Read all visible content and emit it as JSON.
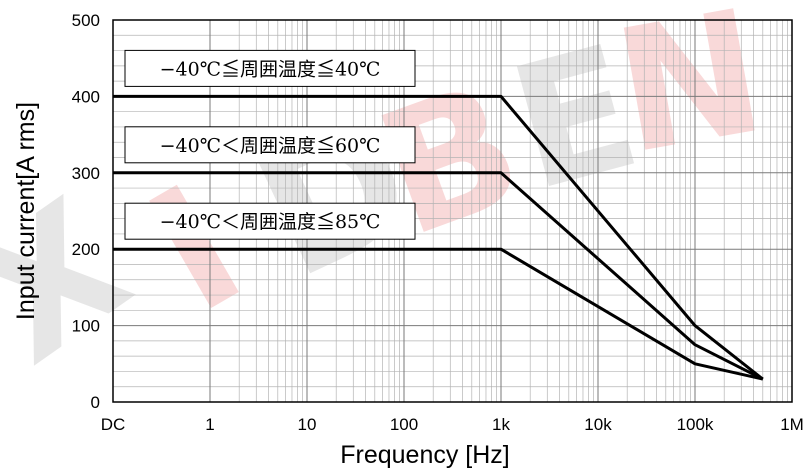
{
  "chart_data": {
    "type": "line",
    "xlabel": "Frequency [Hz]",
    "ylabel": "Input current[A rms]",
    "x_scale": "log",
    "x_ticks": [
      "DC",
      "1",
      "10",
      "100",
      "1k",
      "10k",
      "100k",
      "1M"
    ],
    "y_ticks": [
      "0",
      "100",
      "200",
      "300",
      "400",
      "500"
    ],
    "ylim": [
      0,
      500
    ],
    "grid": true,
    "series": [
      {
        "name": "−40℃≦周囲温度≦40℃",
        "x": [
          "DC",
          1000,
          100000,
          500000
        ],
        "y": [
          400,
          400,
          100,
          30
        ]
      },
      {
        "name": "−40℃＜周囲温度≦60℃",
        "x": [
          "DC",
          1000,
          100000,
          500000
        ],
        "y": [
          300,
          300,
          75,
          30
        ]
      },
      {
        "name": "−40℃＜周囲温度≦85℃",
        "x": [
          "DC",
          1000,
          100000,
          500000
        ],
        "y": [
          200,
          200,
          50,
          30
        ]
      }
    ],
    "watermark": "XIDBEN",
    "colors": {
      "line": "#000000",
      "grid": "#b3b3b3",
      "watermark_red": "#f2aaaa",
      "watermark_gray": "#c8c8c8"
    }
  }
}
